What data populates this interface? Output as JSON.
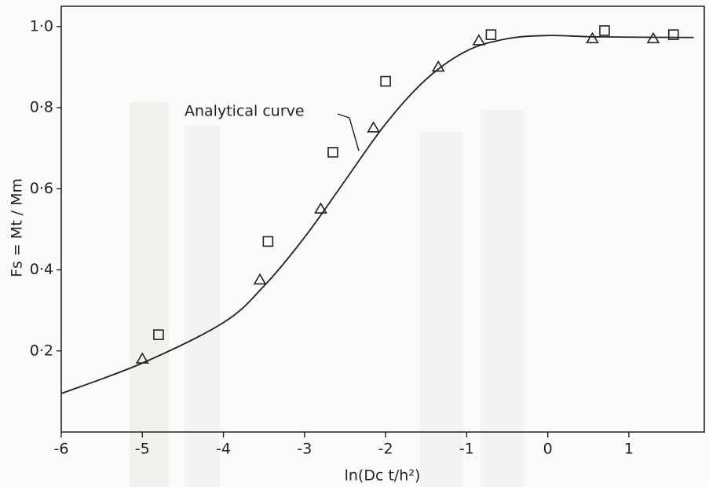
{
  "chart_data": {
    "type": "scatter",
    "x_label": "ln(Dc t/h²)",
    "y_label": "Fs = Mt / Mm",
    "annotation": "Analytical curve",
    "xlim": [
      -6,
      1.93
    ],
    "ylim": [
      0,
      1.05
    ],
    "xticks": [
      -6,
      -5,
      -4,
      -3,
      -2,
      -1,
      0,
      1
    ],
    "yticks": [
      {
        "value": 0.2,
        "label": "0·2"
      },
      {
        "value": 0.4,
        "label": "0·4"
      },
      {
        "value": 0.6,
        "label": "0·6"
      },
      {
        "value": 0.8,
        "label": "0·8"
      },
      {
        "value": 1.0,
        "label": "1·0"
      }
    ],
    "grid": false,
    "series": [
      {
        "type": "line",
        "color": "#222222",
        "x": [
          -6,
          -5,
          -4,
          -3.5,
          -3,
          -2.5,
          -2,
          -1.5,
          -1,
          -0.5,
          0,
          0.5,
          1,
          1.8
        ],
        "values": [
          0.095,
          0.17,
          0.27,
          0.36,
          0.48,
          0.62,
          0.76,
          0.87,
          0.94,
          0.97,
          0.978,
          0.975,
          0.974,
          0.973
        ]
      },
      {
        "type": "scatter",
        "marker": "triangle",
        "color": "#222222",
        "x": [
          -5,
          -3.55,
          -2.8,
          -2.15,
          -1.35,
          -0.85,
          0.55,
          1.3
        ],
        "values": [
          0.18,
          0.375,
          0.55,
          0.75,
          0.9,
          0.965,
          0.97,
          0.97
        ]
      },
      {
        "type": "scatter",
        "marker": "square",
        "color": "#222222",
        "x": [
          -4.8,
          -3.45,
          -2.65,
          -2.0,
          -0.7,
          0.7,
          1.55
        ],
        "values": [
          0.24,
          0.47,
          0.69,
          0.865,
          0.98,
          0.99,
          0.98
        ]
      }
    ]
  }
}
